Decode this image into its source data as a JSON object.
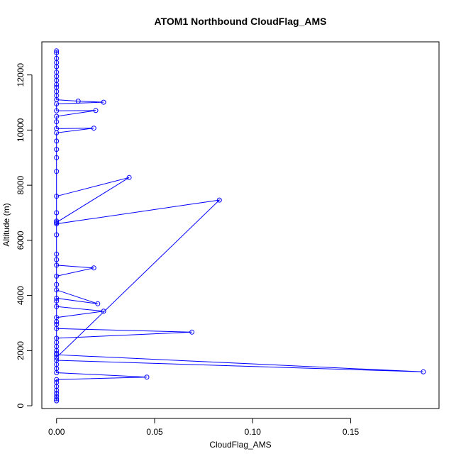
{
  "chart_data": {
    "type": "line",
    "title": "ATOM1 Northbound CloudFlag_AMS",
    "xlabel": "CloudFlag_AMS",
    "ylabel": "Altitude (m)",
    "xlim": [
      -0.0075,
      0.195
    ],
    "ylim": [
      -100,
      13200
    ],
    "x_ticks": [
      0,
      0.05,
      0.1,
      0.15
    ],
    "x_tick_labels": [
      "0.00",
      "0.05",
      "0.10",
      "0.15"
    ],
    "y_ticks": [
      0,
      2000,
      4000,
      6000,
      8000,
      10000,
      12000
    ],
    "y_tick_labels": [
      "0",
      "2000",
      "4000",
      "6000",
      "8000",
      "10000",
      "12000"
    ],
    "grid": false,
    "colors": {
      "series": "#0000ff",
      "axis": "#000000",
      "background": "#ffffff"
    },
    "series": [
      {
        "x": [
          0,
          0,
          0,
          0,
          0,
          0,
          0,
          0,
          0.046,
          0,
          0,
          0,
          0,
          0.187,
          0,
          0,
          0,
          0,
          0,
          0.069,
          0,
          0,
          0,
          0,
          0.024,
          0,
          0,
          0,
          0.021,
          0,
          0,
          0,
          0.019,
          0,
          0,
          0,
          0,
          0,
          0.083,
          0,
          0,
          0,
          0,
          0,
          0.037,
          0,
          0,
          0,
          0,
          0,
          0,
          0.019,
          0,
          0,
          0,
          0.02,
          0,
          0,
          0.024,
          0.011,
          0,
          0,
          0,
          0,
          0,
          0,
          0,
          0,
          0,
          0,
          0,
          0,
          0
        ],
        "y": [
          180,
          250,
          350,
          450,
          560,
          700,
          850,
          950,
          1040,
          1200,
          1350,
          1500,
          1650,
          1230,
          1850,
          2000,
          2150,
          2300,
          2450,
          2670,
          2800,
          2950,
          3050,
          3200,
          3430,
          3600,
          3800,
          3900,
          3700,
          4200,
          4400,
          4700,
          5000,
          5100,
          5300,
          5500,
          6200,
          6600,
          7460,
          1750,
          1900,
          6700,
          7000,
          7600,
          8280,
          6650,
          8500,
          9000,
          9300,
          9600,
          9900,
          10070,
          10050,
          10300,
          10500,
          10710,
          10700,
          10950,
          11010,
          11050,
          11100,
          11250,
          11400,
          11550,
          11650,
          11800,
          11950,
          12100,
          12300,
          12450,
          12600,
          12800,
          12870
        ]
      }
    ]
  }
}
